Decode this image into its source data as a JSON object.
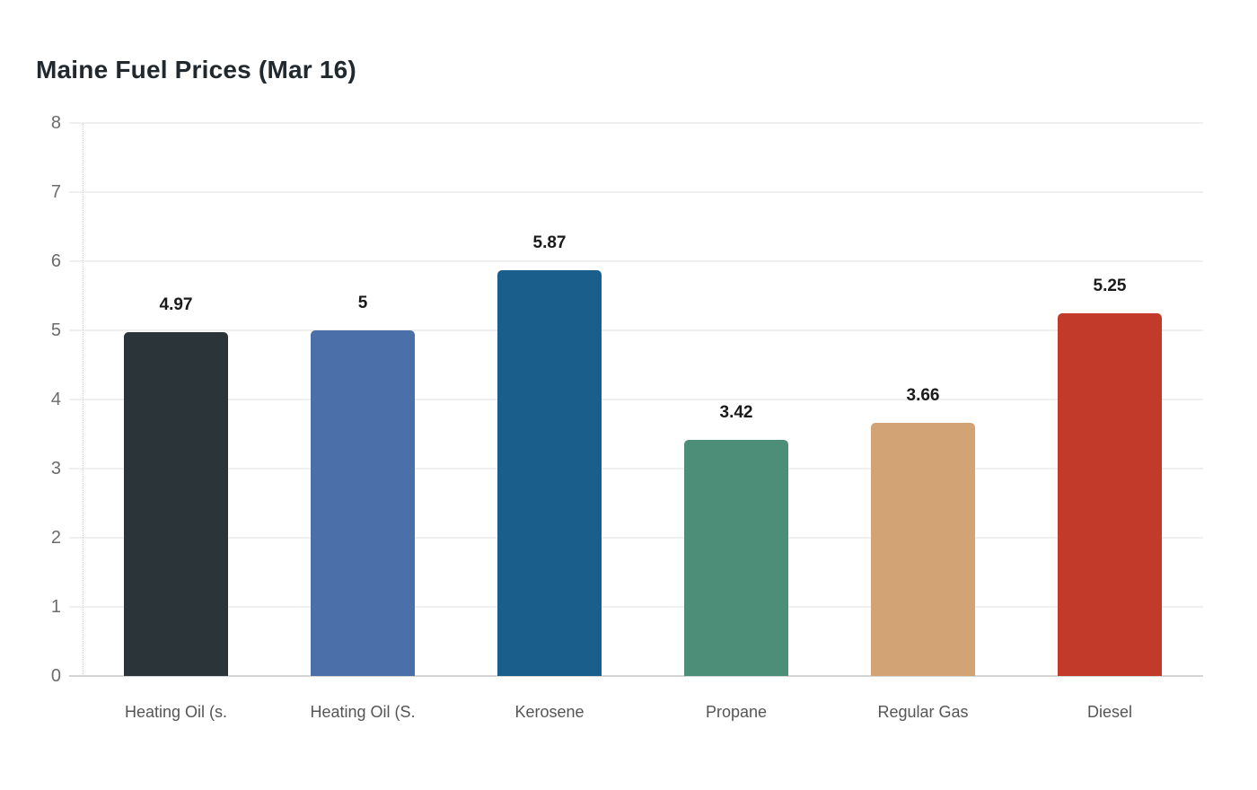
{
  "chart_data": {
    "type": "bar",
    "title": "Maine Fuel Prices (Mar 16)",
    "categories": [
      "Heating Oil (s.",
      "Heating Oil (S.",
      "Kerosene",
      "Propane",
      "Regular Gas",
      "Diesel"
    ],
    "values": [
      4.97,
      5,
      5.87,
      3.42,
      3.66,
      5.25
    ],
    "value_labels": [
      "4.97",
      "5",
      "5.87",
      "3.42",
      "3.66",
      "5.25"
    ],
    "bar_colors": [
      "#2b3438",
      "#4b6fa8",
      "#1a5f8c",
      "#4d8e78",
      "#d2a475",
      "#c23b2a"
    ],
    "xlabel": "",
    "ylabel": "",
    "ylim": [
      0,
      8
    ],
    "yticks": [
      0,
      1,
      2,
      3,
      4,
      5,
      6,
      7,
      8
    ],
    "grid": "horizontal",
    "legend": "none",
    "colors": {
      "background": "#ffffff",
      "grid_line": "#f0f0f0",
      "baseline": "#d5d5d5",
      "axis_dotted_line": "#cfcfcf",
      "tick_label": "#6b6b6b",
      "category_label": "#555555",
      "value_label": "#1a1a1a",
      "title": "#21292e"
    }
  }
}
